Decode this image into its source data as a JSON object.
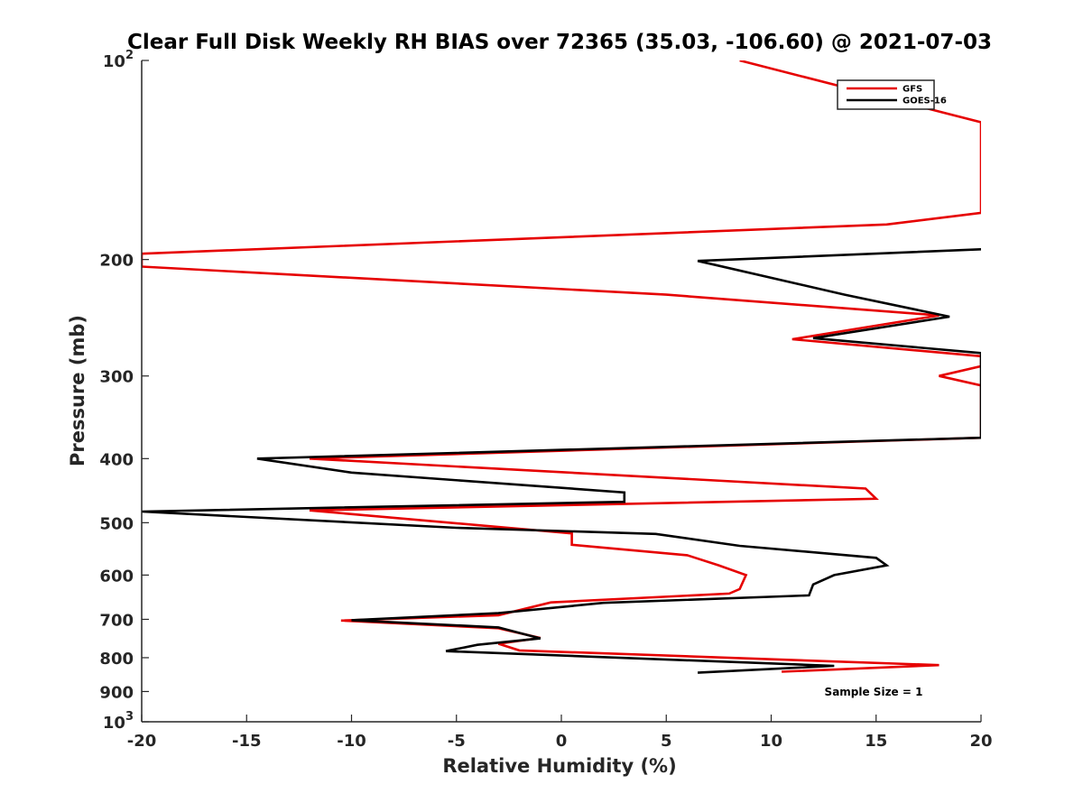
{
  "chart_data": {
    "type": "line",
    "title": "Clear Full Disk Weekly RH BIAS over 72365 (35.03, -106.60) @ 2021-07-03",
    "xlabel": "Relative Humidity (%)",
    "ylabel": "Pressure (mb)",
    "xlim": [
      -20,
      20
    ],
    "ylim": [
      100,
      1000
    ],
    "y_scale": "log",
    "y_reversed": true,
    "grid": false,
    "x_ticks": [
      -20,
      -15,
      -10,
      -5,
      0,
      5,
      10,
      15,
      20
    ],
    "x_tick_labels": [
      "-20",
      "-15",
      "-10",
      "-5",
      "0",
      "5",
      "10",
      "15",
      "20"
    ],
    "y_ticks": [
      100,
      200,
      300,
      400,
      500,
      600,
      700,
      800,
      900,
      1000
    ],
    "y_tick_labels": [
      "10²",
      "200",
      "300",
      "400",
      "500",
      "600",
      "700",
      "800",
      "900",
      "10³"
    ],
    "legend": {
      "position": "top-right",
      "entries": [
        "GFS",
        "GOES-16"
      ]
    },
    "annotation": "Sample Size = 1",
    "series": [
      {
        "name": "GFS",
        "color": "#e60000",
        "points": [
          [
            8.5,
            100
          ],
          [
            20.0,
            124
          ],
          [
            20.0,
            170
          ],
          [
            15.5,
            177
          ],
          [
            -20.0,
            196
          ],
          [
            -20.0,
            205
          ],
          [
            5.0,
            226
          ],
          [
            18.0,
            243
          ],
          [
            11.0,
            264
          ],
          [
            20.0,
            280
          ],
          [
            20.0,
            290
          ],
          [
            18.0,
            300
          ],
          [
            20.0,
            310
          ],
          [
            20.0,
            372
          ],
          [
            -12.0,
            400
          ],
          [
            14.5,
            444
          ],
          [
            15.0,
            460
          ],
          [
            -12.0,
            479
          ],
          [
            0.5,
            519
          ],
          [
            0.5,
            540
          ],
          [
            6.0,
            560
          ],
          [
            7.5,
            580
          ],
          [
            8.8,
            600
          ],
          [
            8.5,
            630
          ],
          [
            8.0,
            640
          ],
          [
            -0.5,
            660
          ],
          [
            -3.0,
            690
          ],
          [
            -10.5,
            703
          ],
          [
            -3.0,
            722
          ],
          [
            -1.0,
            747
          ],
          [
            -3.0,
            762
          ],
          [
            -2.0,
            780
          ],
          [
            18.0,
            821
          ],
          [
            10.5,
            840
          ]
        ]
      },
      {
        "name": "GOES-16",
        "color": "#000000",
        "points": [
          [
            20.0,
            193
          ],
          [
            6.5,
            201
          ],
          [
            13.5,
            226
          ],
          [
            18.5,
            244
          ],
          [
            12.0,
            263
          ],
          [
            20.0,
            277
          ],
          [
            20.0,
            372
          ],
          [
            5.0,
            384
          ],
          [
            -14.5,
            400
          ],
          [
            -10.0,
            420
          ],
          [
            3.0,
            450
          ],
          [
            3.0,
            465
          ],
          [
            -20.0,
            481
          ],
          [
            -5.0,
            509
          ],
          [
            4.5,
            520
          ],
          [
            8.5,
            542
          ],
          [
            15.0,
            565
          ],
          [
            15.5,
            580
          ],
          [
            13.0,
            600
          ],
          [
            12.0,
            620
          ],
          [
            11.8,
            644
          ],
          [
            2.0,
            661
          ],
          [
            -3.0,
            685
          ],
          [
            -10.0,
            702
          ],
          [
            -3.0,
            720
          ],
          [
            -1.0,
            748
          ],
          [
            -4.0,
            765
          ],
          [
            -5.5,
            782
          ],
          [
            13.0,
            823
          ],
          [
            6.5,
            843
          ]
        ]
      }
    ]
  }
}
